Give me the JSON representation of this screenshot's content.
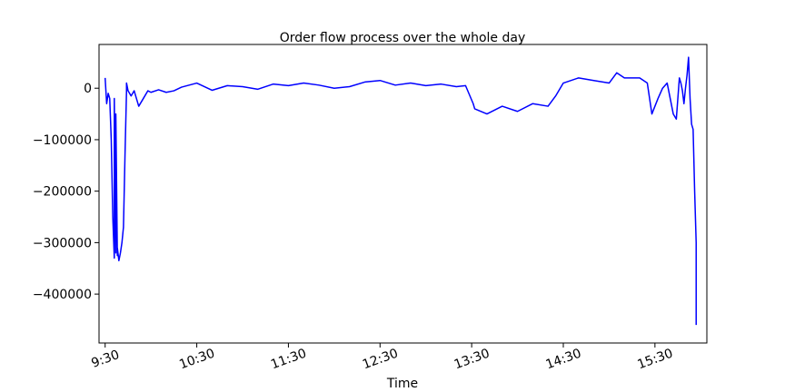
{
  "chart_data": {
    "type": "line",
    "title": "Order flow process over the whole day",
    "xlabel": "Time",
    "ylabel": "",
    "xlim": [
      "9:26",
      "16:04"
    ],
    "ylim": [
      -495000,
      85000
    ],
    "x_ticks": [
      "9:30",
      "10:30",
      "11:30",
      "12:30",
      "13:30",
      "14:30",
      "15:30"
    ],
    "y_ticks": [
      0,
      -100000,
      -200000,
      -300000,
      -400000
    ],
    "y_tick_labels": [
      "0",
      "−100000",
      "−200000",
      "−300000",
      "−400000"
    ],
    "x_tick_rotation_deg": -20,
    "grid": false,
    "legend": "none",
    "series": [
      {
        "color": "#0000ff",
        "x": [
          "9:30",
          "9:31",
          "9:32",
          "9:33",
          "9:34",
          "9:35",
          "9:36",
          "9:36",
          "9:37",
          "9:37",
          "9:38",
          "9:38",
          "9:39",
          "9:40",
          "9:41",
          "9:42",
          "9:43",
          "9:44",
          "9:44",
          "9:45",
          "9:46",
          "9:47",
          "9:49",
          "9:52",
          "9:55",
          "9:58",
          "10:00",
          "10:05",
          "10:10",
          "10:15",
          "10:20",
          "10:30",
          "10:40",
          "10:50",
          "11:00",
          "11:10",
          "11:20",
          "11:30",
          "11:40",
          "11:50",
          "12:00",
          "12:10",
          "12:20",
          "12:30",
          "12:40",
          "12:50",
          "13:00",
          "13:10",
          "13:20",
          "13:26",
          "13:31",
          "13:32",
          "13:40",
          "13:50",
          "14:00",
          "14:10",
          "14:20",
          "14:25",
          "14:30",
          "14:40",
          "14:50",
          "15:00",
          "15:05",
          "15:10",
          "15:20",
          "15:25",
          "15:28",
          "15:32",
          "15:35",
          "15:38",
          "15:40",
          "15:42",
          "15:44",
          "15:46",
          "15:47",
          "15:48",
          "15:49",
          "15:50",
          "15:51",
          "15:52",
          "15:53",
          "15:54",
          "15:55",
          "15:56",
          "15:57",
          "15:57"
        ],
        "y": [
          20000,
          -30000,
          -10000,
          -20000,
          -100000,
          -250000,
          -330000,
          -20000,
          -320000,
          -50000,
          -325000,
          -310000,
          -335000,
          -320000,
          -300000,
          -270000,
          -130000,
          -5000,
          10000,
          -5000,
          -10000,
          -15000,
          -5000,
          -35000,
          -20000,
          -5000,
          -8000,
          -3000,
          -8000,
          -5000,
          2000,
          10000,
          -4000,
          5000,
          3000,
          -2000,
          8000,
          5000,
          10000,
          6000,
          0,
          3000,
          12000,
          15000,
          6000,
          10000,
          5000,
          8000,
          3000,
          5000,
          -30000,
          -40000,
          -50000,
          -35000,
          -45000,
          -30000,
          -35000,
          -15000,
          10000,
          20000,
          15000,
          10000,
          30000,
          20000,
          20000,
          10000,
          -50000,
          -20000,
          0,
          10000,
          -20000,
          -50000,
          -60000,
          20000,
          10000,
          -5000,
          -30000,
          0,
          25000,
          60000,
          -20000,
          -70000,
          -80000,
          -200000,
          -300000,
          -460000
        ]
      }
    ]
  }
}
